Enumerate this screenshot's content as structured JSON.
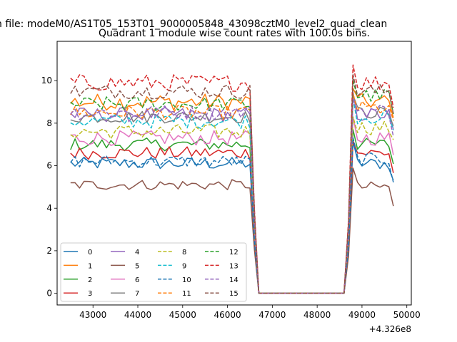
{
  "chart_data": {
    "type": "line",
    "suptitle": "n file: modeM0/AS1T05_153T01_9000005848_43098cztM0_level2_quad_clean",
    "title": "Quadrant 1 module wise count rates with 100.0s bins.",
    "xlabel": "",
    "ylabel": "",
    "x_offset_label": "+4.326e8",
    "xlim": [
      42200,
      50100
    ],
    "ylim": [
      -0.55,
      11.85
    ],
    "x_ticks": [
      43000,
      44000,
      45000,
      46000,
      47000,
      48000,
      49000,
      50000
    ],
    "x_tick_labels": [
      "43000",
      "44000",
      "45000",
      "46000",
      "47000",
      "48000",
      "49000",
      "50000"
    ],
    "y_ticks": [
      0,
      2,
      4,
      6,
      8,
      10
    ],
    "y_tick_labels": [
      "0",
      "2",
      "4",
      "6",
      "8",
      "10"
    ],
    "grid": false,
    "legend_position": "lower-left",
    "segments": [
      {
        "name": "on1",
        "x_start": 42500,
        "x_end": 46500,
        "step": 100
      },
      {
        "name": "off",
        "x_start": 46700,
        "x_end": 48600,
        "step": 100
      },
      {
        "name": "on2",
        "x_start": 48800,
        "x_end": 49700,
        "step": 100
      }
    ],
    "series": [
      {
        "name": "0",
        "color": "#1f77b4",
        "dash": "solid",
        "mean1": 6.1,
        "mean2": 6.1,
        "amp": 0.3
      },
      {
        "name": "1",
        "color": "#ff7f0e",
        "dash": "solid",
        "mean1": 9.0,
        "mean2": 9.0,
        "amp": 0.4
      },
      {
        "name": "2",
        "color": "#2ca02c",
        "dash": "solid",
        "mean1": 7.0,
        "mean2": 7.0,
        "amp": 0.3
      },
      {
        "name": "3",
        "color": "#d62728",
        "dash": "solid",
        "mean1": 6.6,
        "mean2": 6.6,
        "amp": 0.3
      },
      {
        "name": "4",
        "color": "#9467bd",
        "dash": "solid",
        "mean1": 8.4,
        "mean2": 8.4,
        "amp": 0.35
      },
      {
        "name": "5",
        "color": "#8c564b",
        "dash": "solid",
        "mean1": 5.1,
        "mean2": 5.0,
        "amp": 0.25
      },
      {
        "name": "6",
        "color": "#e377c2",
        "dash": "solid",
        "mean1": 7.3,
        "mean2": 7.3,
        "amp": 0.35
      },
      {
        "name": "7",
        "color": "#7f7f7f",
        "dash": "solid",
        "mean1": 8.3,
        "mean2": 8.5,
        "amp": 0.3
      },
      {
        "name": "8",
        "color": "#bcbd22",
        "dash": "dashed",
        "mean1": 7.6,
        "mean2": 7.8,
        "amp": 0.35
      },
      {
        "name": "9",
        "color": "#17becf",
        "dash": "dashed",
        "mean1": 8.1,
        "mean2": 8.3,
        "amp": 0.35
      },
      {
        "name": "10",
        "color": "#1f77b4",
        "dash": "dashed",
        "mean1": 6.2,
        "mean2": 6.3,
        "amp": 0.3
      },
      {
        "name": "11",
        "color": "#ff7f0e",
        "dash": "dashed",
        "mean1": 8.5,
        "mean2": 8.7,
        "amp": 0.35
      },
      {
        "name": "12",
        "color": "#2ca02c",
        "dash": "dashed",
        "mean1": 8.9,
        "mean2": 9.3,
        "amp": 0.35
      },
      {
        "name": "13",
        "color": "#d62728",
        "dash": "dashed",
        "mean1": 9.9,
        "mean2": 9.9,
        "amp": 0.4
      },
      {
        "name": "14",
        "color": "#9467bd",
        "dash": "dashed",
        "mean1": 8.5,
        "mean2": 8.6,
        "amp": 0.35
      },
      {
        "name": "15",
        "color": "#8c564b",
        "dash": "dashed",
        "mean1": 9.5,
        "mean2": 9.5,
        "amp": 0.35
      }
    ]
  }
}
